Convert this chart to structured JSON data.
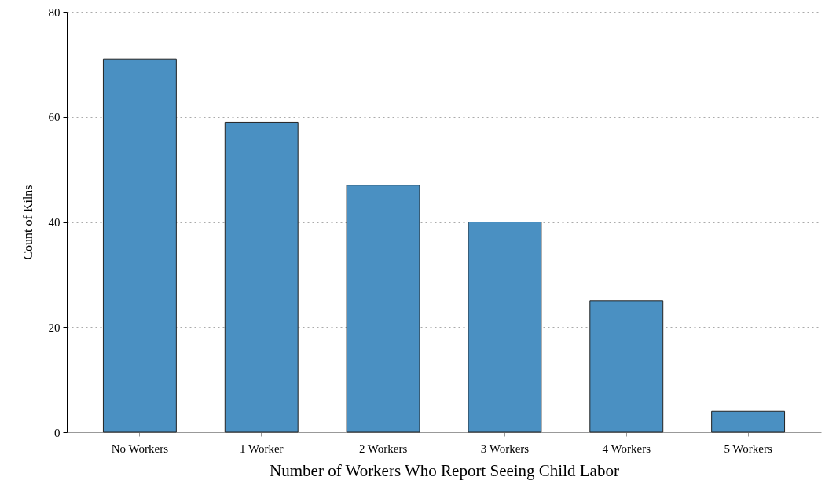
{
  "chart_data": {
    "type": "bar",
    "xlabel": "Number of Workers Who Report Seeing Child Labor",
    "ylabel": "Count of Kilns",
    "categories": [
      "No Workers",
      "1 Worker",
      "2 Workers",
      "3 Workers",
      "4 Workers",
      "5 Workers"
    ],
    "values": [
      71,
      59,
      47,
      40,
      25,
      4
    ],
    "color": "#4a90c2",
    "ylim": [
      0,
      80
    ],
    "yticks": [
      0,
      20,
      40,
      60,
      80
    ],
    "grid": "y"
  }
}
